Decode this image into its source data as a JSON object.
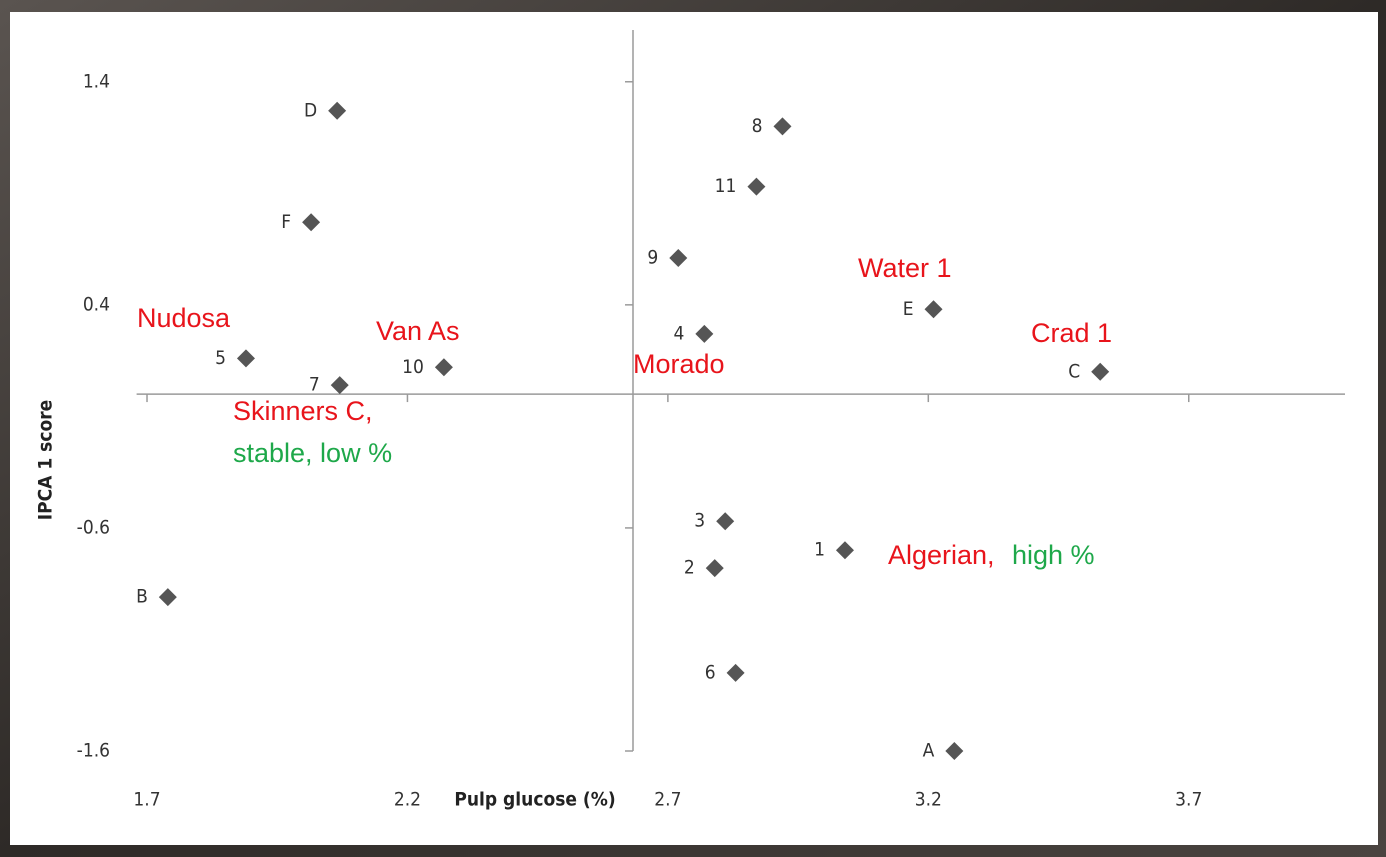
{
  "chart_data": {
    "type": "scatter",
    "x_label": "Pulp glucose (%)",
    "y_label": "IPCA 1 score",
    "xlim": [
      1.68,
      4.0
    ],
    "ylim": [
      -1.6,
      1.65
    ],
    "xticks": [
      1.7,
      2.2,
      2.7,
      3.2,
      3.7
    ],
    "yticks": [
      1.4,
      0.4,
      -0.6,
      -1.6
    ],
    "marker_color": "#555555",
    "points": {
      "labels": [
        "D",
        "F",
        "5",
        "7",
        "10",
        "B",
        "8",
        "11",
        "9",
        "4",
        "E",
        "C",
        "3",
        "1",
        "2",
        "6",
        "A"
      ],
      "x": [
        2.065,
        2.015,
        1.89,
        2.07,
        2.27,
        1.74,
        2.92,
        2.87,
        2.72,
        2.77,
        3.21,
        3.53,
        2.81,
        3.04,
        2.79,
        2.83,
        3.25
      ],
      "y": [
        1.27,
        0.77,
        0.16,
        0.04,
        0.12,
        -0.91,
        1.2,
        0.93,
        0.61,
        0.27,
        0.38,
        0.1,
        -0.57,
        -0.7,
        -0.78,
        -1.25,
        -1.6
      ]
    },
    "annotations": [
      {
        "text": "Nudosa",
        "color": "#e8141b"
      },
      {
        "text": "Van As",
        "color": "#e8141b"
      },
      {
        "text": "Morado",
        "color": "#e8141b"
      },
      {
        "text": "Water 1",
        "color": "#e8141b"
      },
      {
        "text": "Crad 1",
        "color": "#e8141b"
      },
      {
        "text": "Skinners C,",
        "color": "#e8141b"
      },
      {
        "text": "stable, low %",
        "color": "#1ea84a"
      },
      {
        "text": "Algerian,",
        "color": "#e8141b"
      },
      {
        "text": "high %",
        "color": "#1ea84a"
      }
    ]
  }
}
